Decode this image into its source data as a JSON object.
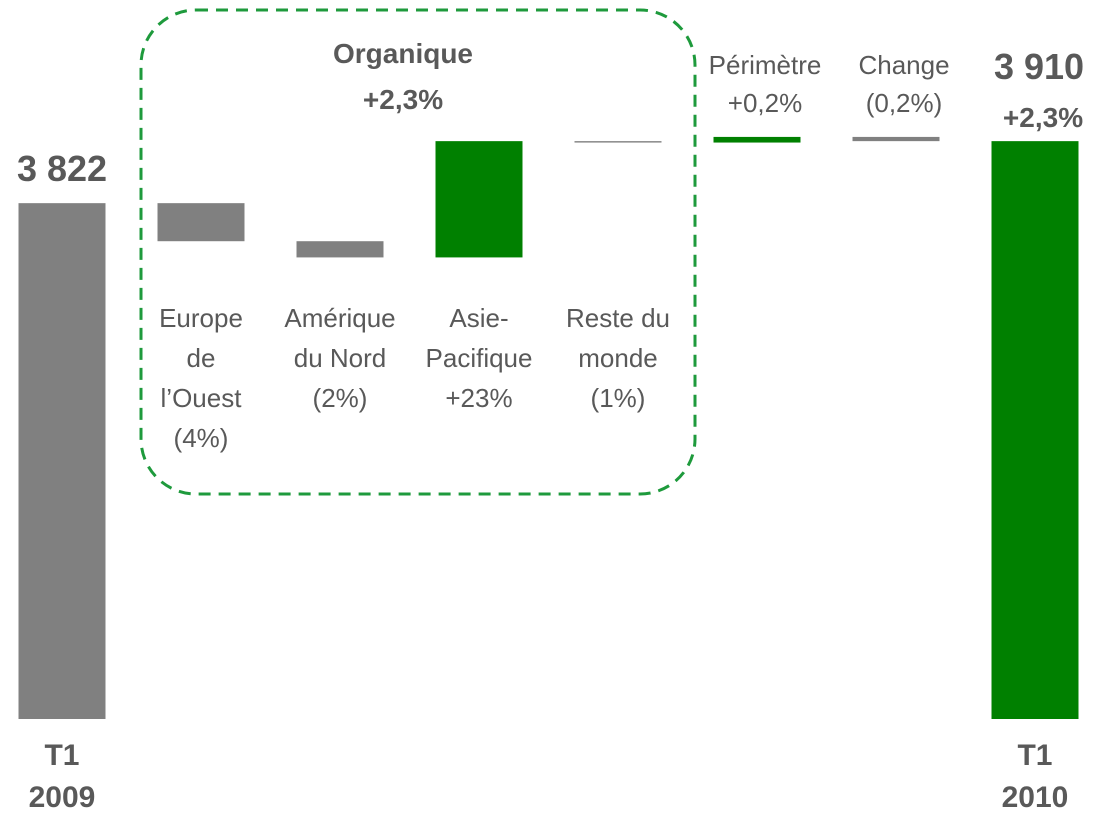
{
  "chart_data": {
    "type": "waterfall",
    "categories": [
      "T1 2009",
      "Europe de l’Ouest",
      "Amérique du Nord",
      "Asie-Pacifique",
      "Reste du monde",
      "Périmètre",
      "Change",
      "T1 2010"
    ],
    "measures": [
      "total",
      "relative",
      "relative",
      "relative",
      "relative",
      "relative",
      "relative",
      "total"
    ],
    "values": [
      3822,
      -54,
      -23,
      165,
      -2,
      8,
      -6,
      3910
    ],
    "value_labels": [
      "3 822",
      null,
      null,
      null,
      null,
      null,
      null,
      "3 910"
    ],
    "change_labels": [
      null,
      "(4%)",
      "(2%)",
      "+23%",
      "(1%)",
      "+0,2%",
      "(0,2%)",
      "+2,3%"
    ],
    "colors": [
      "#808080",
      "#808080",
      "#808080",
      "#008000",
      "#808080",
      "#008000",
      "#808080",
      "#008000"
    ],
    "organique": {
      "title": "Organique",
      "change": "+2,3%"
    },
    "ylim": [
      3090,
      3940
    ]
  }
}
